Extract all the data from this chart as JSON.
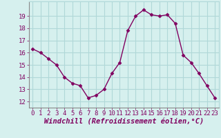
{
  "x": [
    0,
    1,
    2,
    3,
    4,
    5,
    6,
    7,
    8,
    9,
    10,
    11,
    12,
    13,
    14,
    15,
    16,
    17,
    18,
    19,
    20,
    21,
    22,
    23
  ],
  "y": [
    16.3,
    16.0,
    15.5,
    15.0,
    14.0,
    13.5,
    13.3,
    12.3,
    12.5,
    13.0,
    14.3,
    15.2,
    17.8,
    19.0,
    19.5,
    19.1,
    19.0,
    19.1,
    18.4,
    15.8,
    15.2,
    14.3,
    13.3,
    12.3
  ],
  "xlabel": "Windchill (Refroidissement éolien,°C)",
  "xlim": [
    -0.5,
    23.5
  ],
  "ylim": [
    11.5,
    20.2
  ],
  "yticks": [
    12,
    13,
    14,
    15,
    16,
    17,
    18,
    19
  ],
  "xticks": [
    0,
    1,
    2,
    3,
    4,
    5,
    6,
    7,
    8,
    9,
    10,
    11,
    12,
    13,
    14,
    15,
    16,
    17,
    18,
    19,
    20,
    21,
    22,
    23
  ],
  "line_color": "#800060",
  "marker": "D",
  "marker_size": 2.5,
  "bg_color": "#d6f0ee",
  "grid_color": "#b0d8d8",
  "label_color": "#800060",
  "tick_fontsize": 6.5,
  "xlabel_fontsize": 7.5
}
